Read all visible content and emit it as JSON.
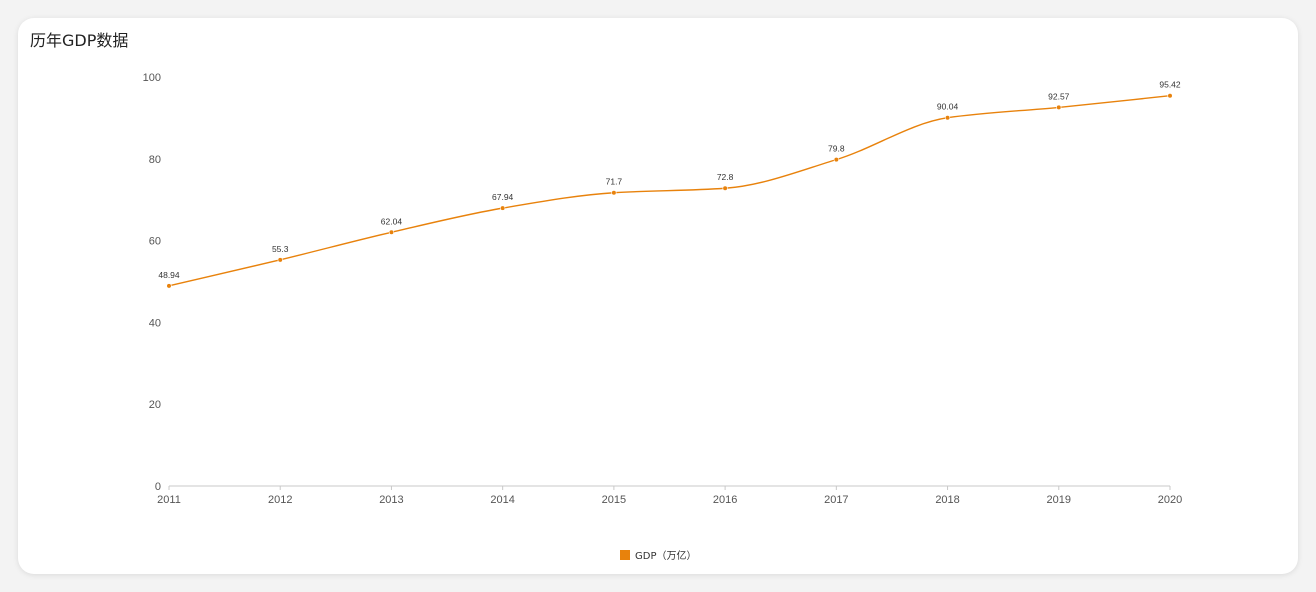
{
  "card": {
    "title": "历年GDP数据"
  },
  "chart_data": {
    "type": "line",
    "smooth": true,
    "title": "",
    "xlabel": "",
    "ylabel": "",
    "x": [
      "2011",
      "2012",
      "2013",
      "2014",
      "2015",
      "2016",
      "2017",
      "2018",
      "2019",
      "2020"
    ],
    "y_ticks": [
      "0",
      "20",
      "40",
      "60",
      "80",
      "100"
    ],
    "ylim": [
      0,
      100
    ],
    "grid": false,
    "legend_position": "bottom-center",
    "series": [
      {
        "name": "GDP（万亿）",
        "color": "#e8820c",
        "values": [
          48.94,
          55.3,
          62.04,
          67.94,
          71.7,
          72.8,
          79.8,
          90.04,
          92.57,
          95.42
        ],
        "labels": [
          "48.94",
          "55.3",
          "62.04",
          "67.94",
          "71.7",
          "72.8",
          "79.8",
          "90.04",
          "92.57",
          "95.42"
        ]
      }
    ]
  }
}
